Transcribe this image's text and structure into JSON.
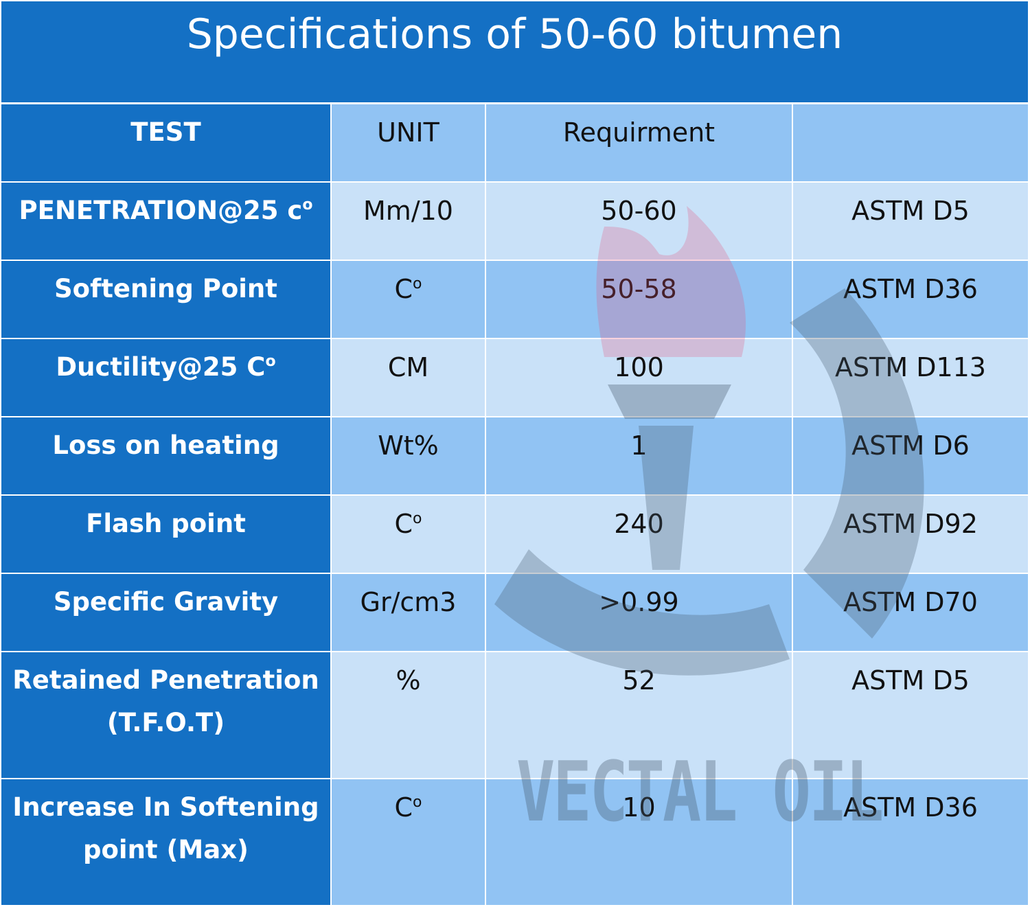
{
  "title": "Specifications of 50-60 bitumen",
  "table": {
    "header": [
      "TEST",
      "UNIT",
      "Requirment"
    ],
    "rows": [
      [
        {
          "text": "PENETRATION@25 c",
          "sup": "o"
        },
        "Mm/10",
        "50-60",
        "ASTM D5"
      ],
      [
        "Softening Point",
        {
          "text": "C",
          "sup": "o"
        },
        "50-58",
        "ASTM D36"
      ],
      [
        {
          "text": "Ductility@25 C",
          "sup": "o"
        },
        "CM",
        "100",
        "ASTM D113"
      ],
      [
        "Loss on heating",
        "Wt%",
        "1",
        "ASTM D6"
      ],
      [
        "Flash point",
        {
          "text": "C",
          "sup": "o"
        },
        "240",
        "ASTM D92"
      ],
      [
        "Specific Gravity",
        "Gr/cm3",
        ">0.99",
        "ASTM D70"
      ],
      [
        "Retained Penetration (T.F.O.T)",
        "%",
        "52",
        "ASTM D5"
      ],
      [
        "Increase In Softening point (Max)",
        {
          "text": "C",
          "sup": "o"
        },
        "10",
        "ASTM D36"
      ]
    ]
  },
  "watermark": "VECTAL OIL"
}
